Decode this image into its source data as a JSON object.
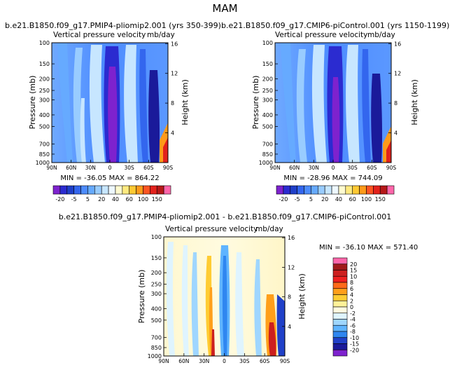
{
  "page_title": "MAM",
  "chart_data": [
    {
      "type": "heatmap",
      "title": "b.e21.B1850.f09_g17.PMIP4-pliomip2.001 (yrs 350-399)",
      "subtitle_left": "Vertical pressure velocity",
      "subtitle_right": "mb/day",
      "ylabel_left": "Pressure (mb)",
      "ylabel_right": "Height (km)",
      "x_ticks": [
        "90N",
        "60N",
        "30N",
        "0",
        "30S",
        "60S",
        "90S"
      ],
      "y_ticks": [
        "100",
        "150",
        "200",
        "250",
        "300",
        "400",
        "500",
        "700",
        "850",
        "1000"
      ],
      "y2_ticks": [
        "16",
        "12",
        "8",
        "4"
      ],
      "stats": "MIN = -36.05   MAX = 864.22",
      "colorbar": {
        "labels": [
          "-20",
          "-5",
          "5",
          "20",
          "40",
          "60",
          "100",
          "150"
        ],
        "colors": [
          "#7e22ce",
          "#2b2bd0",
          "#1f3fc8",
          "#3366ee",
          "#4d8cff",
          "#66aaff",
          "#99ccff",
          "#c7e6ff",
          "#eef8ff",
          "#fffbd0",
          "#ffea80",
          "#ffc933",
          "#ff9a1a",
          "#ff5522",
          "#e3221c",
          "#b51818",
          "#ff66aa"
        ]
      }
    },
    {
      "type": "heatmap",
      "title": "b.e21.B1850.f09_g17.CMIP6-piControl.001 (yrs 1150-1199)",
      "subtitle_left": "Vertical pressure velocity",
      "subtitle_right": "mb/day",
      "ylabel_left": "Pressure (mb)",
      "ylabel_right": "Height (km)",
      "x_ticks": [
        "90N",
        "60N",
        "30N",
        "0",
        "30S",
        "60S",
        "90S"
      ],
      "y_ticks": [
        "100",
        "150",
        "200",
        "250",
        "300",
        "400",
        "500",
        "700",
        "850",
        "1000"
      ],
      "y2_ticks": [
        "16",
        "12",
        "8",
        "4"
      ],
      "stats": "MIN = -28.96   MAX = 744.09",
      "colorbar": {
        "labels": [
          "-20",
          "-5",
          "5",
          "20",
          "40",
          "60",
          "100",
          "150"
        ],
        "colors": [
          "#7e22ce",
          "#2b2bd0",
          "#1f3fc8",
          "#3366ee",
          "#4d8cff",
          "#66aaff",
          "#99ccff",
          "#c7e6ff",
          "#eef8ff",
          "#fffbd0",
          "#ffea80",
          "#ffc933",
          "#ff9a1a",
          "#ff5522",
          "#e3221c",
          "#b51818",
          "#ff66aa"
        ]
      }
    },
    {
      "type": "heatmap",
      "title": "b.e21.B1850.f09_g17.PMIP4-pliomip2.001 - b.e21.B1850.f09_g17.CMIP6-piControl.001",
      "subtitle_left": "Vertical pressure velocity",
      "subtitle_right": "mb/day",
      "ylabel_left": "Pressure (mb)",
      "ylabel_right": "Height (km)",
      "x_ticks": [
        "90N",
        "60N",
        "30N",
        "0",
        "30S",
        "60S",
        "90S"
      ],
      "y_ticks": [
        "100",
        "150",
        "200",
        "250",
        "300",
        "400",
        "500",
        "700",
        "850",
        "1000"
      ],
      "y2_ticks": [
        "16",
        "12",
        "8",
        "4"
      ],
      "stats": "MIN = -36.10   MAX = 571.40",
      "colorbar": {
        "labels": [
          "20",
          "15",
          "10",
          "8",
          "6",
          "4",
          "2",
          "0",
          "-2",
          "-4",
          "-6",
          "-8",
          "-10",
          "-15",
          "-20"
        ],
        "colors": [
          "#ff66aa",
          "#a01a1a",
          "#cc1f1f",
          "#ee2020",
          "#ff6a1a",
          "#ff9f1a",
          "#ffcc33",
          "#fff199",
          "#fffbe0",
          "#dff4ff",
          "#9fd6ff",
          "#5fb4ff",
          "#2f86f0",
          "#2040c8",
          "#1a1a9a",
          "#7e22ce"
        ]
      }
    }
  ]
}
